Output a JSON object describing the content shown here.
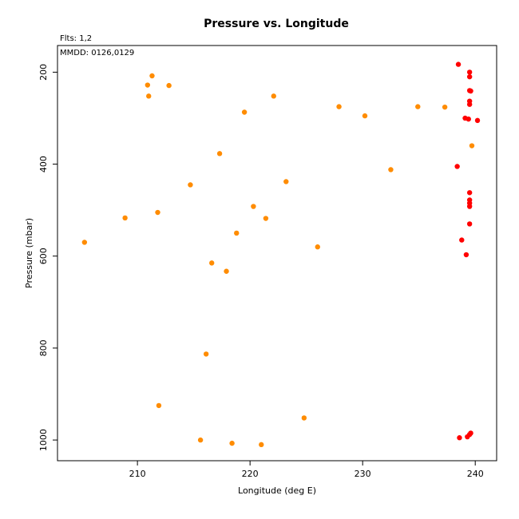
{
  "colors": {
    "orange": "#ff8c00",
    "red": "#ff0000",
    "axis": "#000000",
    "background": "#ffffff"
  },
  "chart_data": {
    "type": "scatter",
    "title": "Pressure vs. Longitude",
    "xlabel": "Longitude (deg E)",
    "ylabel": "Pressure (mbar)",
    "xlim": [
      202.9,
      241.9
    ],
    "ylim": [
      1045,
      142
    ],
    "y_inverted": true,
    "grid": false,
    "x_ticks": [
      210,
      220,
      230,
      240
    ],
    "y_ticks": [
      200,
      400,
      600,
      800,
      1000
    ],
    "annotations": [
      "Flts: 1,2",
      "MMDD: 0126,0129"
    ],
    "series": [
      {
        "color": "#ff8c00",
        "points": [
          [
            205.3,
            570
          ],
          [
            208.9,
            517
          ],
          [
            210.9,
            228
          ],
          [
            211.0,
            252
          ],
          [
            211.3,
            208
          ],
          [
            211.8,
            505
          ],
          [
            211.9,
            925
          ],
          [
            212.8,
            229
          ],
          [
            214.7,
            445
          ],
          [
            215.6,
            1000
          ],
          [
            216.1,
            813
          ],
          [
            216.6,
            615
          ],
          [
            217.3,
            377
          ],
          [
            217.9,
            633
          ],
          [
            218.4,
            1007
          ],
          [
            218.8,
            550
          ],
          [
            219.5,
            287
          ],
          [
            220.3,
            492
          ],
          [
            221.0,
            1010
          ],
          [
            221.4,
            518
          ],
          [
            222.1,
            252
          ],
          [
            223.2,
            438
          ],
          [
            224.8,
            952
          ],
          [
            226.0,
            580
          ],
          [
            227.9,
            275
          ],
          [
            230.2,
            295
          ],
          [
            232.5,
            412
          ],
          [
            234.9,
            275
          ],
          [
            237.3,
            276
          ],
          [
            239.7,
            360
          ]
        ]
      },
      {
        "color": "#ff0000",
        "points": [
          [
            238.5,
            183
          ],
          [
            238.6,
            995
          ],
          [
            238.4,
            405
          ],
          [
            238.8,
            565
          ],
          [
            239.1,
            300
          ],
          [
            239.2,
            597
          ],
          [
            239.3,
            993
          ],
          [
            239.4,
            302
          ],
          [
            239.5,
            200
          ],
          [
            239.5,
            210
          ],
          [
            239.5,
            240
          ],
          [
            239.6,
            241
          ],
          [
            239.5,
            263
          ],
          [
            239.5,
            270
          ],
          [
            239.5,
            462
          ],
          [
            239.5,
            478
          ],
          [
            239.5,
            485
          ],
          [
            239.5,
            492
          ],
          [
            239.5,
            530
          ],
          [
            239.6,
            985
          ],
          [
            239.5,
            988
          ],
          [
            240.2,
            305
          ]
        ]
      }
    ]
  }
}
